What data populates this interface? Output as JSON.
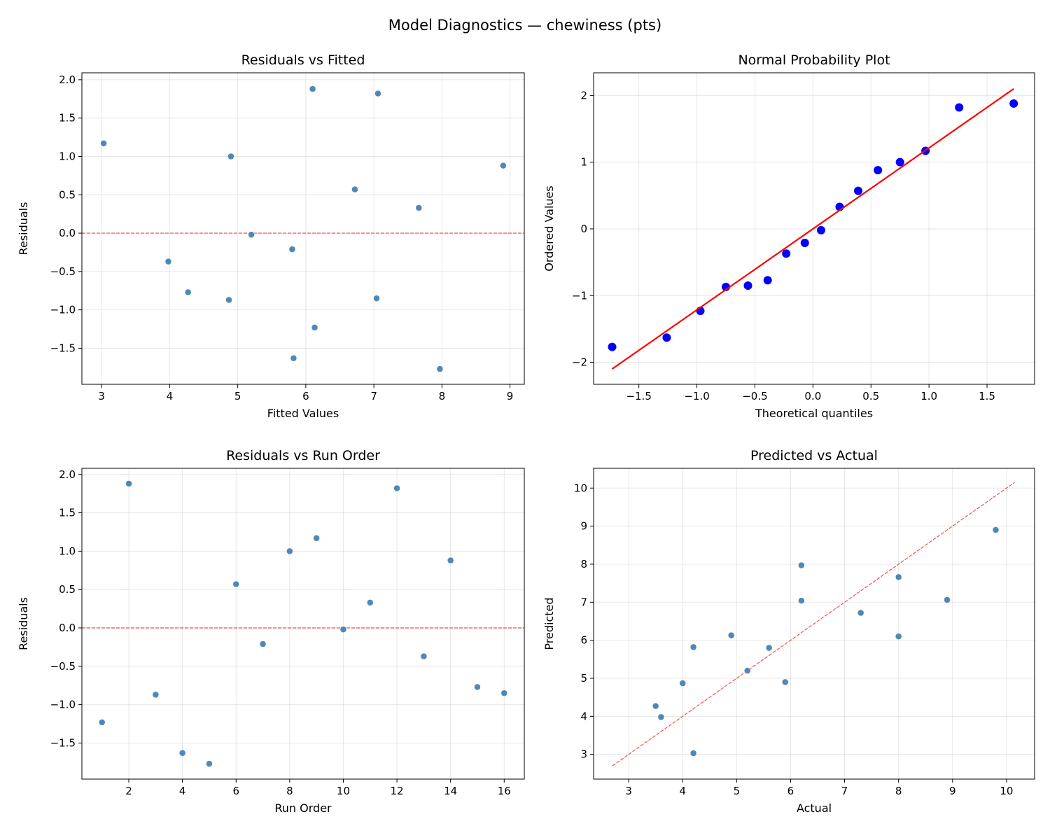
{
  "title": "Model Diagnostics — chewiness (pts)",
  "colors": {
    "point": "#4682b4",
    "qq_point": "#0000ff",
    "qq_line": "#ff0000",
    "ref_line": "#ff0000"
  },
  "chart_data": [
    {
      "type": "scatter",
      "title": "Residuals vs Fitted",
      "xlabel": "Fitted Values",
      "ylabel": "Residuals",
      "xlim": [
        2.71,
        9.21
      ],
      "ylim": [
        -1.97,
        2.09
      ],
      "grid": true,
      "xticks": [
        "3",
        "4",
        "5",
        "6",
        "7",
        "8",
        "9"
      ],
      "xtick_values": [
        3,
        4,
        5,
        6,
        7,
        8,
        9
      ],
      "yticks": [
        "−1.5",
        "−1.0",
        "−0.5",
        "0.0",
        "0.5",
        "1.0",
        "1.5",
        "2.0"
      ],
      "ytick_values": [
        -1.5,
        -1,
        -0.5,
        0,
        0.5,
        1,
        1.5,
        2
      ],
      "reference_line": {
        "y": 0,
        "style": "dashed"
      },
      "x": [
        6.13,
        6.1,
        4.87,
        5.82,
        7.97,
        6.72,
        5.8,
        4.9,
        3.03,
        5.2,
        7.66,
        7.06,
        3.98,
        8.9,
        4.27,
        7.04
      ],
      "y": [
        -1.23,
        1.88,
        -0.87,
        -1.63,
        -1.77,
        0.57,
        -0.21,
        1.0,
        1.17,
        -0.02,
        0.33,
        1.82,
        -0.37,
        0.88,
        -0.77,
        -0.85
      ]
    },
    {
      "type": "scatter",
      "title": "Normal Probability Plot",
      "xlabel": "Theoretical quantiles",
      "ylabel": "Ordered Values",
      "xlim": [
        -1.89,
        1.91
      ],
      "ylim": [
        -2.33,
        2.34
      ],
      "grid": true,
      "xticks": [
        "−1.5",
        "−1.0",
        "−0.5",
        "0.0",
        "0.5",
        "1.0",
        "1.5"
      ],
      "xtick_values": [
        -1.5,
        -1,
        -0.5,
        0,
        0.5,
        1,
        1.5
      ],
      "yticks": [
        "−2",
        "−1",
        "0",
        "1",
        "2"
      ],
      "ytick_values": [
        -2,
        -1,
        0,
        1,
        2
      ],
      "fit_line": {
        "x": [
          -1.73,
          1.73
        ],
        "y": [
          -2.1,
          2.1
        ]
      },
      "x": [
        -1.73,
        -1.26,
        -0.97,
        -0.75,
        -0.56,
        -0.39,
        -0.23,
        -0.07,
        0.07,
        0.23,
        0.39,
        0.56,
        0.75,
        0.97,
        1.26,
        1.73
      ],
      "y": [
        -1.77,
        -1.63,
        -1.23,
        -0.87,
        -0.85,
        -0.77,
        -0.37,
        -0.21,
        -0.02,
        0.33,
        0.57,
        0.88,
        1.0,
        1.17,
        1.82,
        1.88
      ]
    },
    {
      "type": "scatter",
      "title": "Residuals vs Run Order",
      "xlabel": "Run Order",
      "ylabel": "Residuals",
      "xlim": [
        0.25,
        16.75
      ],
      "ylim": [
        -1.97,
        2.08
      ],
      "grid": true,
      "xticks": [
        "2",
        "4",
        "6",
        "8",
        "10",
        "12",
        "14",
        "16"
      ],
      "xtick_values": [
        2,
        4,
        6,
        8,
        10,
        12,
        14,
        16
      ],
      "yticks": [
        "−1.5",
        "−1.0",
        "−0.5",
        "0.0",
        "0.5",
        "1.0",
        "1.5",
        "2.0"
      ],
      "ytick_values": [
        -1.5,
        -1,
        -0.5,
        0,
        0.5,
        1,
        1.5,
        2
      ],
      "reference_line": {
        "y": 0,
        "style": "dashed"
      },
      "x": [
        1,
        2,
        3,
        4,
        5,
        6,
        7,
        8,
        9,
        10,
        11,
        12,
        13,
        14,
        15,
        16
      ],
      "y": [
        -1.23,
        1.88,
        -0.87,
        -1.63,
        -1.77,
        0.57,
        -0.21,
        1.0,
        1.17,
        -0.02,
        0.33,
        1.82,
        -0.37,
        0.88,
        -0.77,
        -0.85
      ]
    },
    {
      "type": "scatter",
      "title": "Predicted vs Actual",
      "xlabel": "Actual",
      "ylabel": "Predicted",
      "xlim": [
        2.35,
        10.52
      ],
      "ylim": [
        2.35,
        10.52
      ],
      "grid": true,
      "xticks": [
        "3",
        "4",
        "5",
        "6",
        "7",
        "8",
        "9",
        "10"
      ],
      "xtick_values": [
        3,
        4,
        5,
        6,
        7,
        8,
        9,
        10
      ],
      "yticks": [
        "3",
        "4",
        "5",
        "6",
        "7",
        "8",
        "9",
        "10"
      ],
      "ytick_values": [
        3,
        4,
        5,
        6,
        7,
        8,
        9,
        10
      ],
      "identity_line": {
        "x": [
          2.7,
          10.15
        ],
        "y": [
          2.7,
          10.15
        ],
        "style": "dashed"
      },
      "x": [
        4.9,
        8.0,
        4.0,
        4.2,
        6.2,
        7.3,
        5.6,
        5.9,
        4.2,
        5.2,
        8.0,
        8.9,
        3.6,
        9.8,
        3.5,
        6.2
      ],
      "y": [
        6.13,
        6.1,
        4.87,
        5.82,
        7.97,
        6.72,
        5.8,
        4.9,
        3.03,
        5.2,
        7.66,
        7.06,
        3.98,
        8.9,
        4.27,
        7.04
      ]
    }
  ]
}
